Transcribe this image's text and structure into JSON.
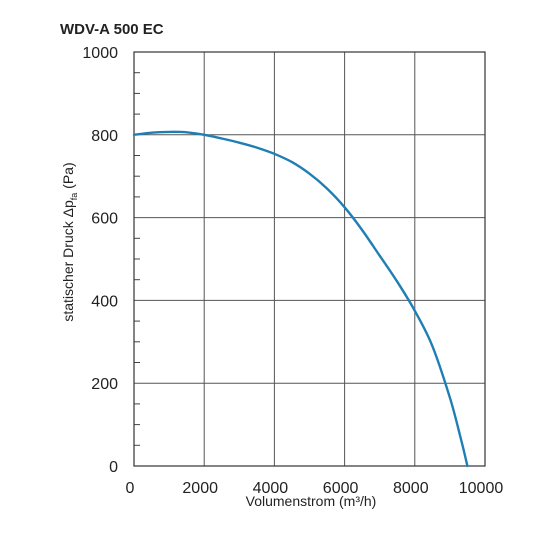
{
  "chart_data": {
    "type": "line",
    "title": "WDV-A 500 EC",
    "xlabel": "Volumenstrom (m³/h)",
    "ylabel": {
      "main": "statischer Druck Δp",
      "subscript": "fa",
      "unit": " (Pa)"
    },
    "xlim": [
      0,
      10000
    ],
    "ylim": [
      0,
      1000
    ],
    "x_ticks": [
      "0",
      "2000",
      "4000",
      "6000",
      "8000",
      "10000"
    ],
    "y_ticks": [
      "0",
      "200",
      "400",
      "600",
      "800",
      "1000"
    ],
    "grid": true,
    "line_color": "#1f7fb5",
    "series": [
      {
        "x": [
          0,
          500,
          1000,
          1500,
          2000,
          2500,
          3000,
          3500,
          4000,
          4500,
          5000,
          5500,
          6000,
          6500,
          7000,
          7500,
          8000,
          8500,
          9000,
          9300,
          9500
        ],
        "values": [
          800,
          805,
          807,
          806,
          800,
          791,
          781,
          769,
          754,
          734,
          706,
          670,
          625,
          570,
          508,
          445,
          375,
          290,
          165,
          70,
          0
        ]
      }
    ]
  }
}
